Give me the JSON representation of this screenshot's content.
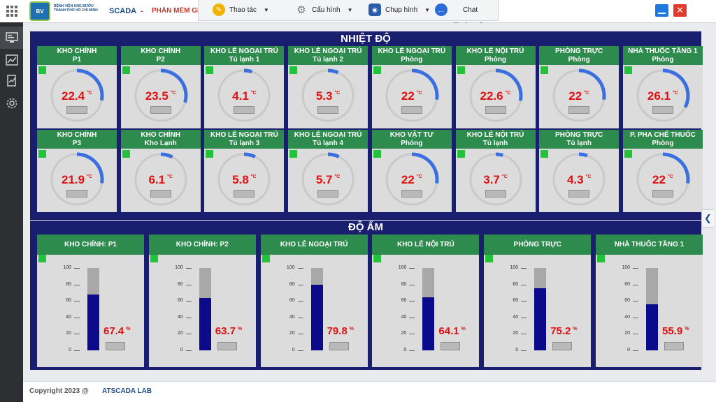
{
  "header": {
    "logo_text": "BV",
    "hospital_name": "BỆNH VIỆN UNG BƯỚU THÀNH PHỐ HỒ CHÍ MINH",
    "app_name": "SCADA",
    "app_dash": "-",
    "app_subtitle": "PHẦN MỀM GIÁM S",
    "close_symbol": "✕"
  },
  "toolbar": {
    "thao_tac": "Thao tác",
    "cau_hinh": "Cấu hình",
    "chup_hinh": "Chụp hình",
    "chat": "Chat"
  },
  "nhiet_do": {
    "title": "NHIỆT ĐỘ",
    "unit": "°C",
    "gauge_max": 40,
    "cards": [
      {
        "line1": "KHO CHÍNH",
        "line2": "P1",
        "value": "22.4"
      },
      {
        "line1": "KHO CHÍNH",
        "line2": "P2",
        "value": "23.5"
      },
      {
        "line1": "KHO LẺ NGOẠI TRÚ",
        "line2": "Tủ lạnh 1",
        "value": "4.1"
      },
      {
        "line1": "KHO LẺ NGOẠI TRÚ",
        "line2": "Tủ lạnh 2",
        "value": "5.3"
      },
      {
        "line1": "KHO LẺ NGOẠI TRÚ",
        "line2": "Phòng",
        "value": "22"
      },
      {
        "line1": "KHO LẺ NỘI TRÚ",
        "line2": "Phòng",
        "value": "22.6"
      },
      {
        "line1": "PHÒNG TRỰC",
        "line2": "Phòng",
        "value": "22"
      },
      {
        "line1": "NHÀ THUỐC TẦNG 1",
        "line2": "Phòng",
        "value": "26.1"
      },
      {
        "line1": "KHO CHÍNH",
        "line2": "P3",
        "value": "21.9"
      },
      {
        "line1": "KHO CHÍNH",
        "line2": "Kho Lạnh",
        "value": "6.1"
      },
      {
        "line1": "KHO LẺ NGOẠI TRÚ",
        "line2": "Tủ lạnh 3",
        "value": "5.8"
      },
      {
        "line1": "KHO LẺ NGOẠI TRÚ",
        "line2": "Tủ lạnh 4",
        "value": "5.7"
      },
      {
        "line1": "KHO VẬT TƯ",
        "line2": "Phòng",
        "value": "22"
      },
      {
        "line1": "KHO LẺ NỘI TRÚ",
        "line2": "Tủ lạnh",
        "value": "3.7"
      },
      {
        "line1": "PHÒNG TRỰC",
        "line2": "Tủ lạnh",
        "value": "4.3"
      },
      {
        "line1": "P. PHA CHẾ THUỐC",
        "line2": "Phòng",
        "value": "22"
      }
    ]
  },
  "do_am": {
    "title": "ĐỘ ẨM",
    "unit": "%",
    "ticks": [
      "100",
      "80",
      "60",
      "40",
      "20",
      "0"
    ],
    "cards": [
      {
        "label": "KHO CHÍNH: P1",
        "value": "67.4"
      },
      {
        "label": "KHO CHÍNH: P2",
        "value": "63.7"
      },
      {
        "label": "KHO LẺ NGOẠI TRÚ",
        "value": "79.8"
      },
      {
        "label": "KHO LẺ NỘI TRÚ",
        "value": "64.1"
      },
      {
        "label": "PHÒNG TRỰC",
        "value": "75.2"
      },
      {
        "label": "NHÀ THUỐC TẦNG 1",
        "value": "55.9"
      }
    ]
  },
  "footer": {
    "copyright": "Copyright 2023 @",
    "company": "ATSCADA LAB"
  },
  "colors": {
    "panel_bg": "#1a1e6e",
    "card_header": "#2e8b4e",
    "value_red": "#e01010",
    "arc_blue": "#3a6fe0",
    "bar_navy": "#0a0a8a"
  }
}
